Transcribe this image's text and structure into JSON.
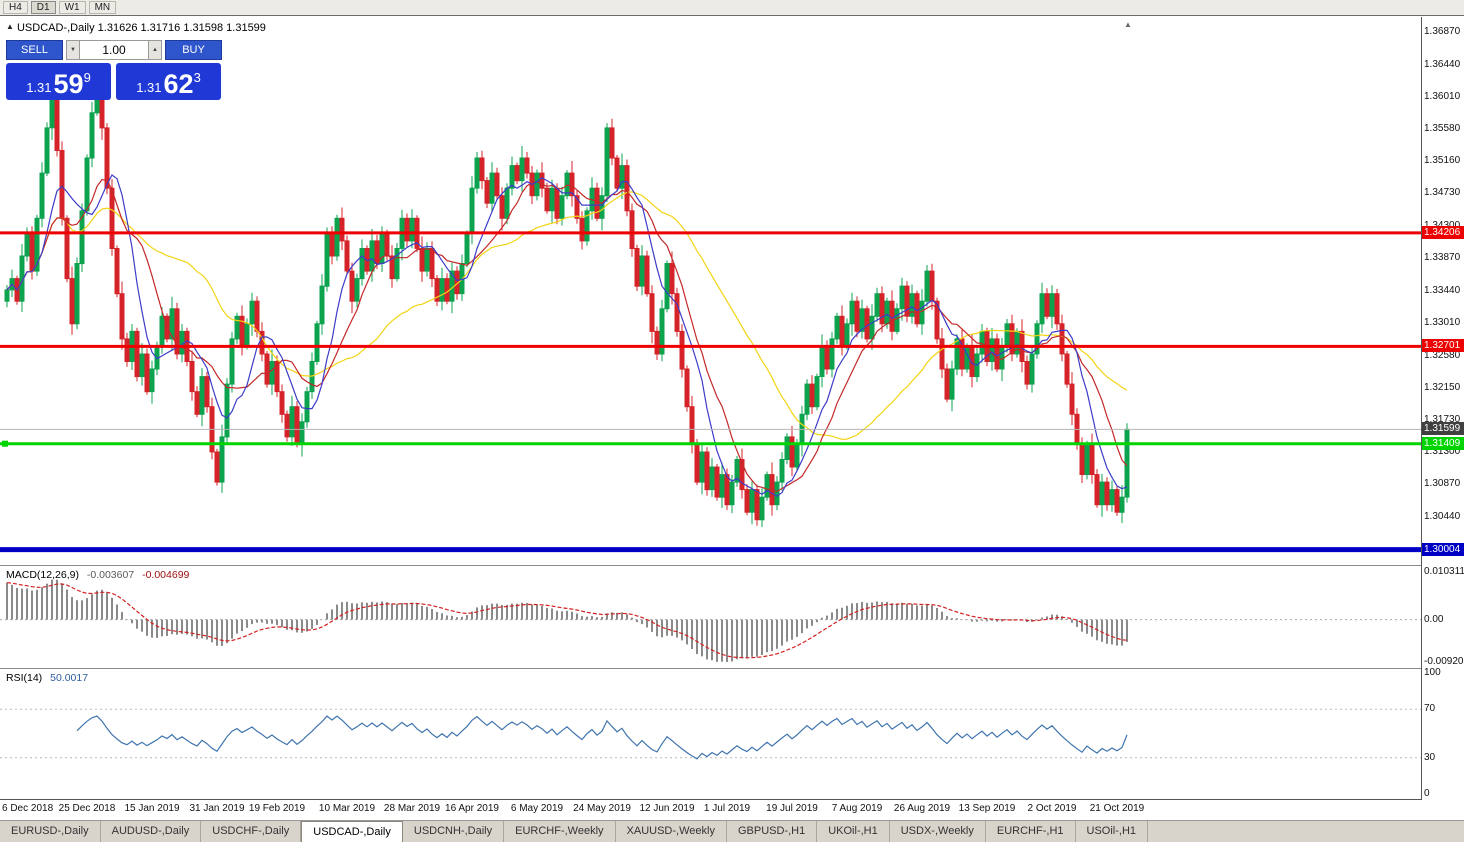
{
  "toolbar": {
    "timeframes": [
      "H4",
      "D1",
      "W1",
      "MN"
    ],
    "active_index": 1
  },
  "title": {
    "marker": "▲",
    "symbol": "USDCAD-,Daily",
    "open": "1.31626",
    "high": "1.31716",
    "low": "1.31598",
    "close": "1.31599"
  },
  "icons": {
    "stepper_down": "▼",
    "stepper_up": "▲",
    "shift_marker": "▲"
  },
  "trade_panel": {
    "sell_label": "SELL",
    "buy_label": "BUY",
    "volume": "1.00",
    "sell_price": {
      "prefix": "1.31",
      "big": "59",
      "sup": "9"
    },
    "buy_price": {
      "prefix": "1.31",
      "big": "62",
      "sup": "3"
    }
  },
  "tabs": {
    "active_index": 3,
    "items": [
      "EURUSD-,Daily",
      "AUDUSD-,Daily",
      "USDCHF-,Daily",
      "USDCAD-,Daily",
      "USDCNH-,Daily",
      "EURCHF-,Weekly",
      "XAUUSD-,Weekly",
      "GBPUSD-,H1",
      "UKOil-,H1",
      "USDX-,Weekly",
      "EURCHF-,H1",
      "USOil-,H1"
    ]
  },
  "colors": {
    "up_candle": "#0ca34f",
    "down_candle": "#d6232a",
    "ma_slow": "#f2d413",
    "ma_mid": "#c42828",
    "ma_fast": "#3c3cc8",
    "resistance_line": "#ee0000",
    "support_line": "#00d400",
    "target_line": "#0000c4",
    "current_price_line": "#b4b4b4",
    "current_price_badge": "#404040",
    "macd_hist": "#8a8a8a",
    "macd_signal": "#d42222",
    "rsi_line": "#3f74ad"
  },
  "chart_data": {
    "type": "candlestick",
    "title": "USDCAD-,Daily",
    "symbol": "USDCAD",
    "timeframe": "Daily",
    "ohlc_display": {
      "open": 1.31626,
      "high": 1.31716,
      "low": 1.31598,
      "close": 1.31599
    },
    "price_min": 1.298,
    "price_max": 1.36965,
    "price_axis_labels": [
      "1.36870",
      "1.36440",
      "1.36010",
      "1.35580",
      "1.35160",
      "1.34730",
      "1.34300",
      "1.33870",
      "1.33440",
      "1.33010",
      "1.32580",
      "1.32150",
      "1.31730",
      "1.31300",
      "1.30870",
      "1.30440"
    ],
    "first_open": 1.333,
    "closes": [
      1.3345,
      1.336,
      1.333,
      1.339,
      1.342,
      1.337,
      1.344,
      1.35,
      1.356,
      1.36,
      1.353,
      1.344,
      1.336,
      1.33,
      1.338,
      1.345,
      1.352,
      1.358,
      1.361,
      1.356,
      1.348,
      1.34,
      1.334,
      1.328,
      1.325,
      1.329,
      1.323,
      1.326,
      1.321,
      1.324,
      1.327,
      1.331,
      1.328,
      1.332,
      1.326,
      1.329,
      1.325,
      1.321,
      1.318,
      1.323,
      1.319,
      1.313,
      1.309,
      1.315,
      1.322,
      1.328,
      1.331,
      1.327,
      1.33,
      1.333,
      1.329,
      1.326,
      1.322,
      1.325,
      1.321,
      1.318,
      1.315,
      1.319,
      1.314,
      1.317,
      1.321,
      1.325,
      1.33,
      1.335,
      1.342,
      1.339,
      1.344,
      1.341,
      1.337,
      1.333,
      1.336,
      1.34,
      1.337,
      1.341,
      1.338,
      1.342,
      1.339,
      1.336,
      1.34,
      1.344,
      1.341,
      1.344,
      1.34,
      1.337,
      1.34,
      1.336,
      1.333,
      1.336,
      1.333,
      1.337,
      1.334,
      1.338,
      1.342,
      1.348,
      1.352,
      1.349,
      1.346,
      1.35,
      1.347,
      1.344,
      1.348,
      1.351,
      1.349,
      1.352,
      1.35,
      1.347,
      1.35,
      1.348,
      1.345,
      1.348,
      1.344,
      1.347,
      1.35,
      1.347,
      1.344,
      1.341,
      1.345,
      1.348,
      1.344,
      1.347,
      1.356,
      1.352,
      1.348,
      1.351,
      1.345,
      1.34,
      1.335,
      1.339,
      1.334,
      1.329,
      1.326,
      1.332,
      1.338,
      1.334,
      1.329,
      1.324,
      1.319,
      1.314,
      1.309,
      1.313,
      1.308,
      1.311,
      1.307,
      1.31,
      1.306,
      1.309,
      1.312,
      1.308,
      1.305,
      1.308,
      1.304,
      1.307,
      1.31,
      1.306,
      1.309,
      1.312,
      1.315,
      1.311,
      1.314,
      1.318,
      1.322,
      1.319,
      1.323,
      1.327,
      1.324,
      1.328,
      1.331,
      1.327,
      1.33,
      1.333,
      1.329,
      1.332,
      1.328,
      1.331,
      1.334,
      1.33,
      1.333,
      1.329,
      1.332,
      1.335,
      1.331,
      1.334,
      1.33,
      1.333,
      1.337,
      1.333,
      1.328,
      1.324,
      1.32,
      1.324,
      1.328,
      1.324,
      1.327,
      1.323,
      1.326,
      1.329,
      1.325,
      1.328,
      1.324,
      1.327,
      1.33,
      1.326,
      1.329,
      1.325,
      1.322,
      1.326,
      1.33,
      1.334,
      1.331,
      1.334,
      1.33,
      1.326,
      1.322,
      1.318,
      1.314,
      1.31,
      1.314,
      1.31,
      1.306,
      1.309,
      1.306,
      1.308,
      1.305,
      1.307,
      1.316
    ],
    "wick_pattern": [
      8,
      15,
      5,
      20,
      10,
      12,
      6,
      18,
      9,
      14
    ],
    "ma_lines": [
      {
        "period": 34,
        "color": "#f2d413"
      },
      {
        "period": 13,
        "color": "#c42828"
      },
      {
        "period": 8,
        "color": "#3c3cc8"
      }
    ],
    "hlines": [
      {
        "price": 1.34206,
        "label": "1.34206",
        "color": "#ee0000",
        "width": 3
      },
      {
        "price": 1.32701,
        "label": "1.32701",
        "color": "#ee0000",
        "width": 3
      },
      {
        "price": 1.31599,
        "label": "1.31599",
        "color": "#b4b4b4",
        "width": 1,
        "badge_color": "#404040"
      },
      {
        "price": 1.31409,
        "label": "1.31409",
        "color": "#00d400",
        "width": 3,
        "handle": true
      },
      {
        "price": 1.30004,
        "label": "1.30004",
        "color": "#0000c4",
        "width": 5
      }
    ],
    "macd": {
      "name": "MACD(12,26,9)",
      "values": [
        "-0.003607",
        "-0.004699"
      ],
      "range": [
        0.010311,
        -0.009203
      ],
      "scale_labels": [
        "0.010311",
        "0.00",
        "-0.009203"
      ],
      "seed_offset": 0.008
    },
    "rsi": {
      "name": "RSI(14)",
      "value": "50.0017",
      "period": 14,
      "levels": [
        70,
        30
      ],
      "scale_labels": [
        "100",
        "70",
        "30",
        "0"
      ]
    },
    "date_labels": [
      {
        "text": "6 Dec 2018",
        "index": 0
      },
      {
        "text": "25 Dec 2018",
        "index": 16
      },
      {
        "text": "15 Jan 2019",
        "index": 29
      },
      {
        "text": "31 Jan 2019",
        "index": 42
      },
      {
        "text": "19 Feb 2019",
        "index": 54
      },
      {
        "text": "10 Mar 2019",
        "index": 68
      },
      {
        "text": "28 Mar 2019",
        "index": 81
      },
      {
        "text": "16 Apr 2019",
        "index": 93
      },
      {
        "text": "6 May 2019",
        "index": 106
      },
      {
        "text": "24 May 2019",
        "index": 119
      },
      {
        "text": "12 Jun 2019",
        "index": 132
      },
      {
        "text": "1 Jul 2019",
        "index": 144
      },
      {
        "text": "19 Jul 2019",
        "index": 157
      },
      {
        "text": "7 Aug 2019",
        "index": 170
      },
      {
        "text": "26 Aug 2019",
        "index": 183
      },
      {
        "text": "13 Sep 2019",
        "index": 196
      },
      {
        "text": "2 Oct 2019",
        "index": 209
      },
      {
        "text": "21 Oct 2019",
        "index": 222
      }
    ]
  }
}
